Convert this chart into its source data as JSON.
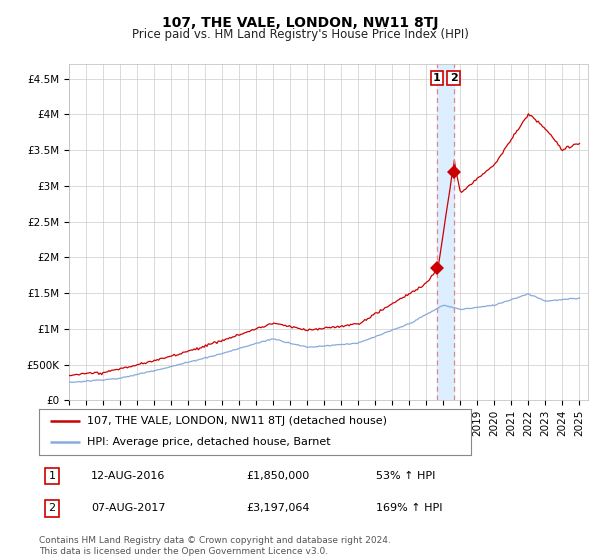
{
  "title": "107, THE VALE, LONDON, NW11 8TJ",
  "subtitle": "Price paid vs. HM Land Registry's House Price Index (HPI)",
  "ylabel_ticks": [
    "£0",
    "£500K",
    "£1M",
    "£1.5M",
    "£2M",
    "£2.5M",
    "£3M",
    "£3.5M",
    "£4M",
    "£4.5M"
  ],
  "ytick_values": [
    0,
    500000,
    1000000,
    1500000,
    2000000,
    2500000,
    3000000,
    3500000,
    4000000,
    4500000
  ],
  "ylim": [
    0,
    4700000
  ],
  "xlim_start": 1995.0,
  "xlim_end": 2025.5,
  "sale_color": "#cc0000",
  "hpi_color": "#88aadd",
  "vline_color": "#dd8888",
  "shade_color": "#ddeeff",
  "annotation_color": "#cc0000",
  "legend_label_sale": "107, THE VALE, LONDON, NW11 8TJ (detached house)",
  "legend_label_hpi": "HPI: Average price, detached house, Barnet",
  "sale1_date": 2016.62,
  "sale1_price": 1850000,
  "sale1_label": "1",
  "sale1_text": "12-AUG-2016",
  "sale1_price_text": "£1,850,000",
  "sale1_hpi_text": "53% ↑ HPI",
  "sale2_date": 2017.6,
  "sale2_price": 3197064,
  "sale2_label": "2",
  "sale2_text": "07-AUG-2017",
  "sale2_price_text": "£3,197,064",
  "sale2_hpi_text": "169% ↑ HPI",
  "footer": "Contains HM Land Registry data © Crown copyright and database right 2024.\nThis data is licensed under the Open Government Licence v3.0.",
  "background_color": "#ffffff",
  "grid_color": "#cccccc",
  "title_fontsize": 10,
  "subtitle_fontsize": 8.5,
  "tick_fontsize": 7.5,
  "legend_fontsize": 8,
  "annotation_fontsize": 8,
  "footer_fontsize": 6.5
}
